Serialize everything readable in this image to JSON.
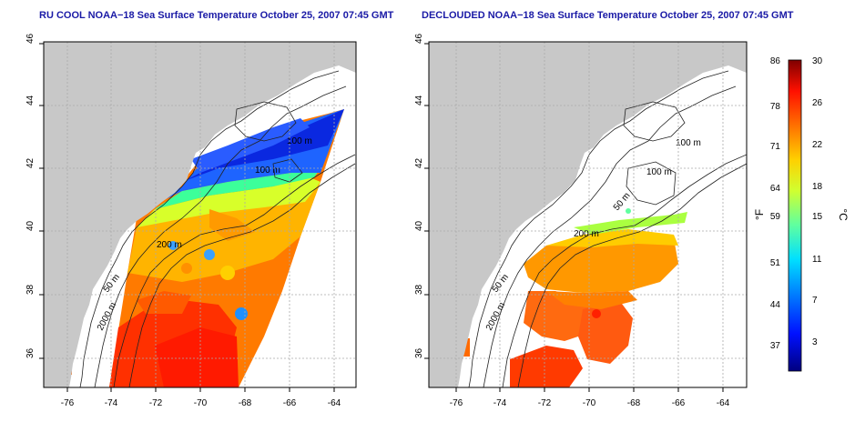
{
  "titles": {
    "left": "RU COOL NOAA−18 Sea Surface Temperature October 25, 2007 07:45 GMT",
    "right": "DECLOUDED NOAA−18 Sea Surface Temperature October 25, 2007 07:45 GMT"
  },
  "axes": {
    "lat_ticks": [
      "36",
      "38",
      "40",
      "42",
      "44",
      "46"
    ],
    "lon_ticks": [
      "-76",
      "-74",
      "-72",
      "-70",
      "-68",
      "-66",
      "-64"
    ]
  },
  "contours": {
    "depth_labels": [
      "50 m",
      "200 m",
      "2000 m",
      "100 m",
      "100 m",
      "50 m",
      "50 m",
      "200 m",
      "2000 m",
      "100 m"
    ]
  },
  "colorbar": {
    "fahrenheit_ticks": [
      "86",
      "78",
      "71",
      "64",
      "59",
      "51",
      "44",
      "37"
    ],
    "celsius_ticks": [
      "30",
      "26",
      "22",
      "18",
      "15",
      "11",
      "7",
      "3"
    ],
    "fahrenheit_unit": "°F",
    "celsius_unit": "°C",
    "colors": [
      "#00007f",
      "#0010ff",
      "#0080ff",
      "#00e0ff",
      "#60ff9f",
      "#d0ff30",
      "#ffd000",
      "#ff7000",
      "#ff1000",
      "#7f0000"
    ]
  },
  "colors": {
    "land": "#c8c8c8",
    "ocean_bg": "#ffffff",
    "title": "#1a1aa6"
  }
}
